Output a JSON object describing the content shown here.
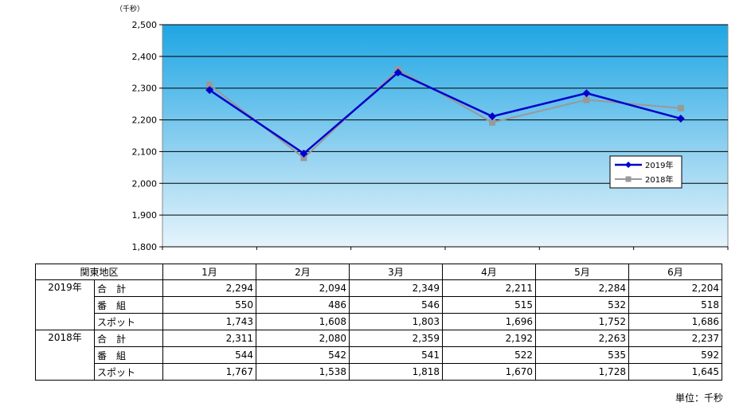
{
  "chart_data": {
    "type": "line",
    "y_unit_label": "（千秒）",
    "categories": [
      "1月",
      "2月",
      "3月",
      "4月",
      "5月",
      "6月"
    ],
    "ylim": [
      1800,
      2500
    ],
    "y_ticks": [
      "1,800",
      "1,900",
      "2,000",
      "2,100",
      "2,200",
      "2,300",
      "2,400",
      "2,500"
    ],
    "grid": true,
    "legend_position": "right",
    "series": [
      {
        "name": "2019年",
        "values": [
          2294,
          2094,
          2349,
          2211,
          2284,
          2204
        ],
        "color": "#0000cc",
        "marker": "diamond"
      },
      {
        "name": "2018年",
        "values": [
          2311,
          2080,
          2359,
          2192,
          2263,
          2237
        ],
        "color": "#999999",
        "marker": "square"
      }
    ]
  },
  "table": {
    "region_header": "関東地区",
    "months": [
      "1月",
      "2月",
      "3月",
      "4月",
      "5月",
      "6月"
    ],
    "groups": [
      {
        "year": "2019年",
        "rows": [
          {
            "label": "合　計",
            "values": [
              "2,294",
              "2,094",
              "2,349",
              "2,211",
              "2,284",
              "2,204"
            ]
          },
          {
            "label": "番　組",
            "values": [
              "550",
              "486",
              "546",
              "515",
              "532",
              "518"
            ]
          },
          {
            "label": "スポット",
            "values": [
              "1,743",
              "1,608",
              "1,803",
              "1,696",
              "1,752",
              "1,686"
            ]
          }
        ]
      },
      {
        "year": "2018年",
        "rows": [
          {
            "label": "合　計",
            "values": [
              "2,311",
              "2,080",
              "2,359",
              "2,192",
              "2,263",
              "2,237"
            ]
          },
          {
            "label": "番　組",
            "values": [
              "544",
              "542",
              "541",
              "522",
              "535",
              "592"
            ]
          },
          {
            "label": "スポット",
            "values": [
              "1,767",
              "1,538",
              "1,818",
              "1,670",
              "1,728",
              "1,645"
            ]
          }
        ]
      }
    ],
    "unit_note": "単位：千秒"
  }
}
